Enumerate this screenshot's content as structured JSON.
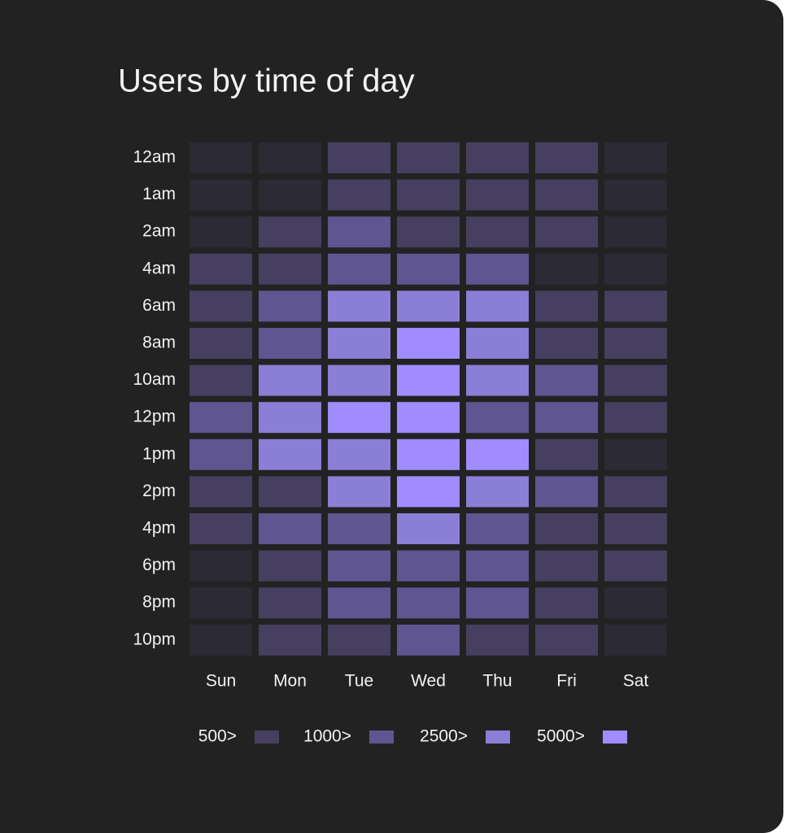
{
  "chart_data": {
    "type": "heatmap",
    "title": "Users by time of day",
    "x_categories": [
      "Sun",
      "Mon",
      "Tue",
      "Wed",
      "Thu",
      "Fri",
      "Sat"
    ],
    "y_categories": [
      "12am",
      "1am",
      "2am",
      "4am",
      "6am",
      "8am",
      "10am",
      "12pm",
      "1pm",
      "2pm",
      "4pm",
      "6pm",
      "8pm",
      "10pm"
    ],
    "values": [
      [
        250,
        250,
        750,
        750,
        750,
        750,
        250
      ],
      [
        250,
        250,
        750,
        750,
        750,
        750,
        250
      ],
      [
        250,
        750,
        1750,
        750,
        750,
        750,
        250
      ],
      [
        750,
        750,
        1750,
        1750,
        1750,
        250,
        250
      ],
      [
        750,
        1750,
        3750,
        3750,
        3750,
        750,
        750
      ],
      [
        750,
        1750,
        3750,
        6000,
        3750,
        750,
        750
      ],
      [
        750,
        3750,
        3750,
        6000,
        3750,
        1750,
        750
      ],
      [
        1750,
        3750,
        6000,
        6000,
        1750,
        1750,
        750
      ],
      [
        1750,
        3750,
        3750,
        6000,
        6000,
        750,
        250
      ],
      [
        750,
        750,
        3750,
        6000,
        3750,
        1750,
        750
      ],
      [
        750,
        1750,
        1750,
        3750,
        1750,
        750,
        750
      ],
      [
        250,
        750,
        1750,
        1750,
        1750,
        750,
        750
      ],
      [
        250,
        750,
        1750,
        1750,
        1750,
        750,
        250
      ],
      [
        250,
        750,
        750,
        1750,
        750,
        750,
        250
      ]
    ],
    "base_color": "#2c2a35",
    "legend": [
      {
        "label": "500>",
        "value": 500,
        "color": "#463f60"
      },
      {
        "label": "1000>",
        "value": 1000,
        "color": "#5f5591"
      },
      {
        "label": "2500>",
        "value": 2500,
        "color": "#8a7ed6"
      },
      {
        "label": "5000>",
        "value": 5000,
        "color": "#a08cff"
      }
    ]
  }
}
